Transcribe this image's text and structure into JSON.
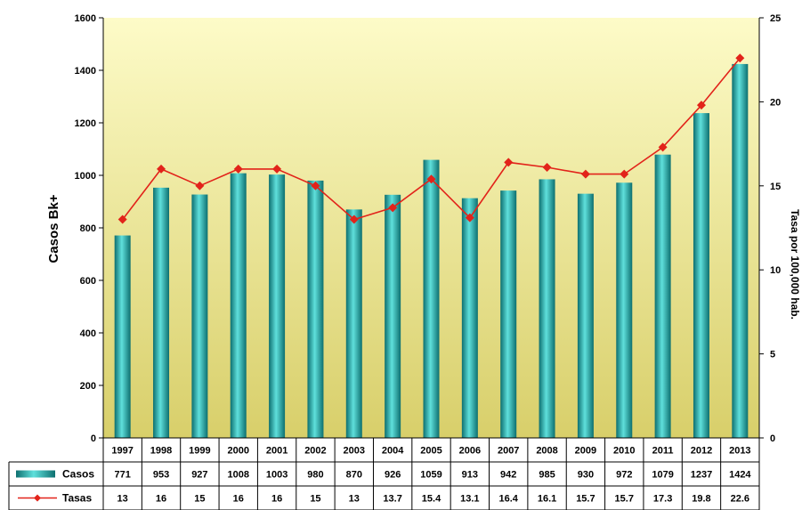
{
  "chart_data": {
    "type": "bar",
    "categories": [
      "1997",
      "1998",
      "1999",
      "2000",
      "2001",
      "2002",
      "2003",
      "2004",
      "2005",
      "2006",
      "2007",
      "2008",
      "2009",
      "2010",
      "2011",
      "2012",
      "2013"
    ],
    "series": [
      {
        "name": "Casos",
        "type": "bar",
        "axis": "left",
        "values": [
          771,
          953,
          927,
          1008,
          1003,
          980,
          870,
          926,
          1059,
          913,
          942,
          985,
          930,
          972,
          1079,
          1237,
          1424
        ],
        "labels": [
          "771",
          "953",
          "927",
          "1008",
          "1003",
          "980",
          "870",
          "926",
          "1059",
          "913",
          "942",
          "985",
          "930",
          "972",
          "1079",
          "1237",
          "1424"
        ],
        "color": "#1aa6a6"
      },
      {
        "name": "Tasas",
        "type": "line",
        "axis": "right",
        "values": [
          13,
          16,
          15,
          16,
          16,
          15,
          13,
          13.7,
          15.4,
          13.1,
          16.4,
          16.1,
          15.7,
          15.7,
          17.3,
          19.8,
          22.6
        ],
        "labels": [
          "13",
          "16",
          "15",
          "16",
          "16",
          "15",
          "13",
          "13.7",
          "15.4",
          "13.1",
          "16.4",
          "16.1",
          "15.7",
          "15.7",
          "17.3",
          "19.8",
          "22.6"
        ],
        "color": "#e2231a"
      }
    ],
    "ylabel": "Casos Bk+",
    "y2label": "Tasa por 100,000 hab.",
    "ylim": [
      0,
      1600
    ],
    "y2lim": [
      0,
      25
    ],
    "yticks": [
      "0",
      "200",
      "400",
      "600",
      "800",
      "1000",
      "1200",
      "1400",
      "1600"
    ],
    "y2ticks": [
      "0",
      "5",
      "10",
      "15",
      "20",
      "25"
    ],
    "grid": false,
    "legend": "data-table-bottom",
    "plot_background": [
      "#fdfbc8",
      "#d8cf6a"
    ]
  }
}
